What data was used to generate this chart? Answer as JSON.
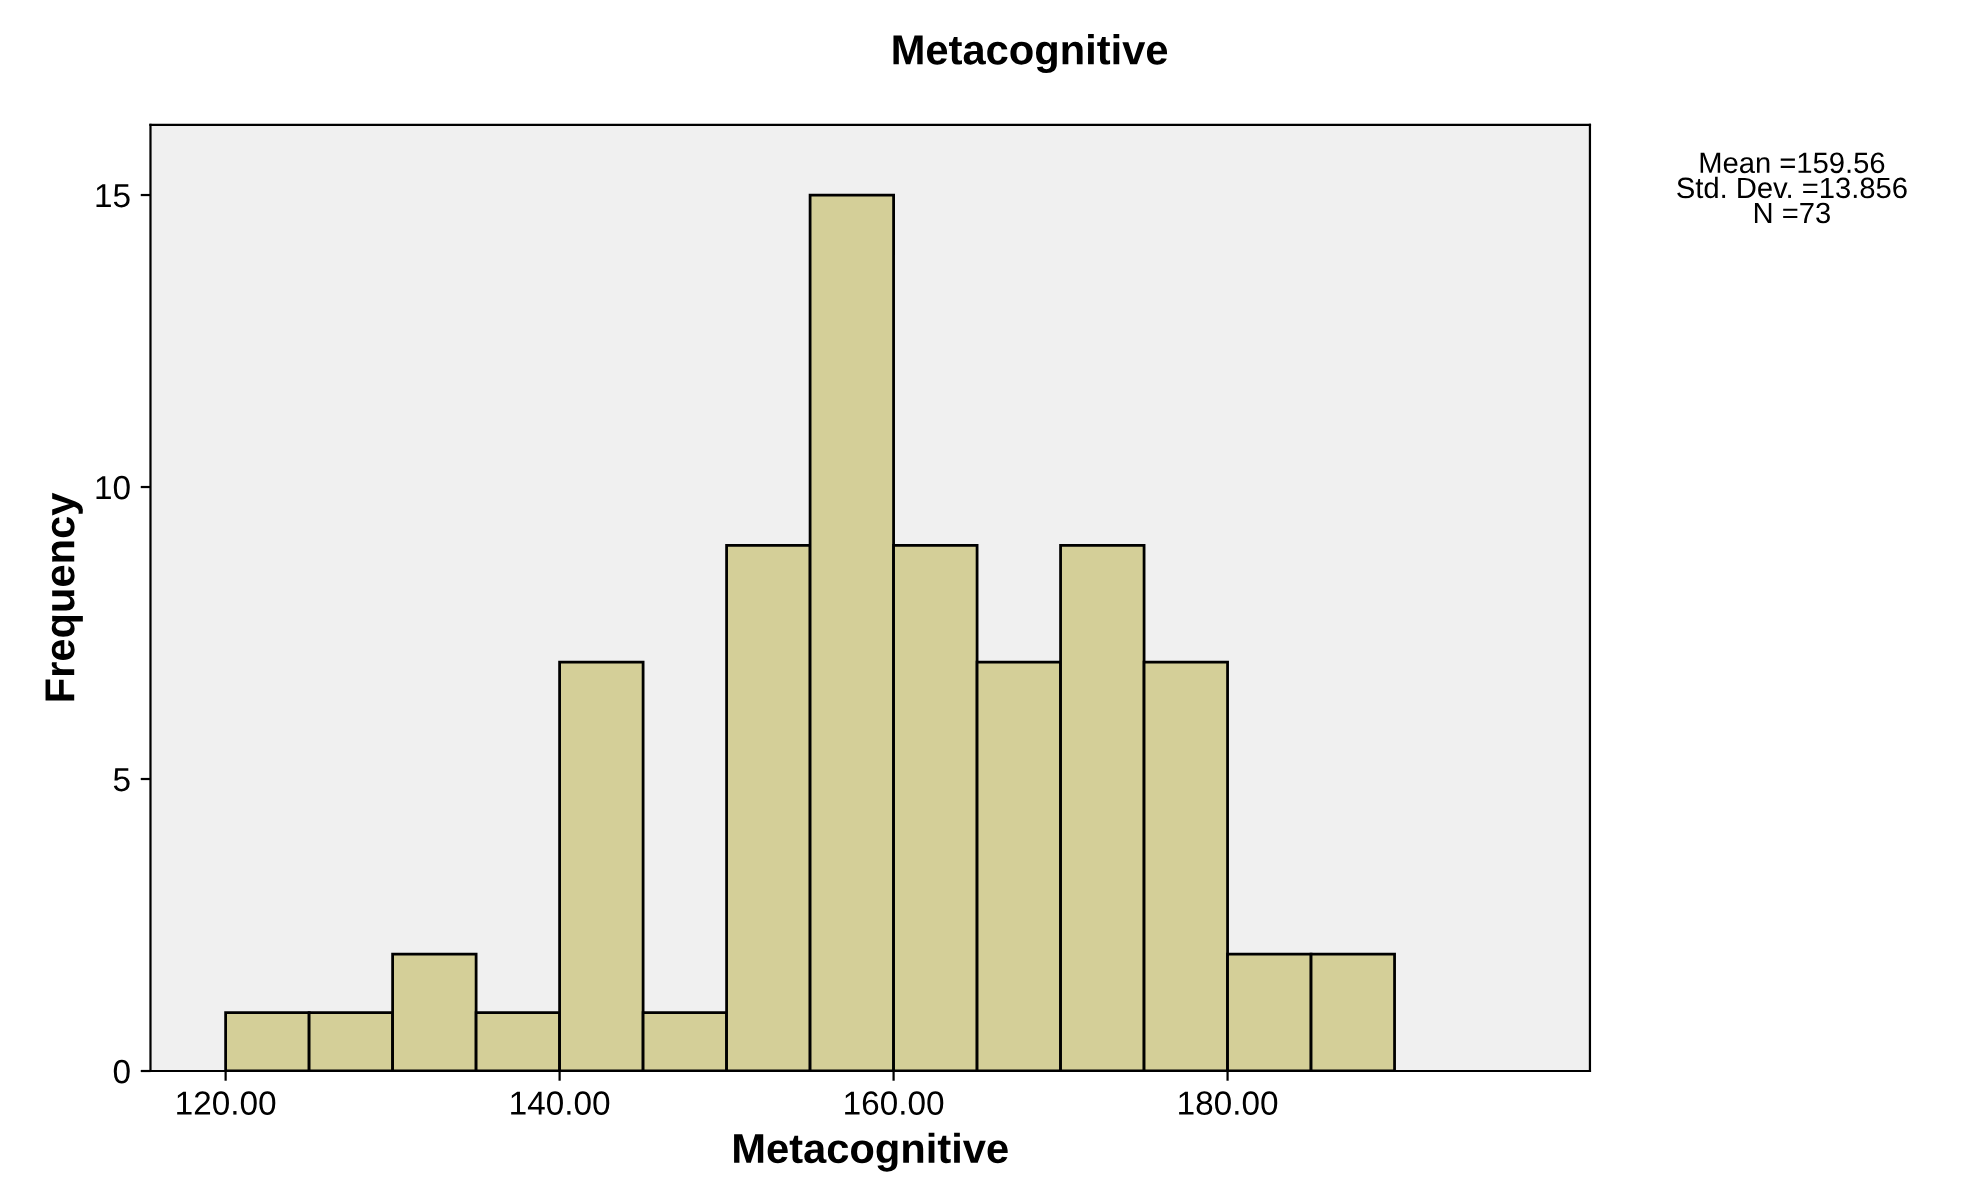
{
  "chart_data": {
    "type": "histogram",
    "title": "Metacognitive",
    "xlabel": "Metacognitive",
    "ylabel": "Frequency",
    "bins": [
      120,
      125,
      130,
      135,
      140,
      145,
      150,
      155,
      160,
      165,
      170,
      175,
      180,
      185,
      190
    ],
    "values": [
      1,
      1,
      2,
      1,
      7,
      1,
      9,
      15,
      9,
      7,
      9,
      7,
      2,
      2
    ],
    "color": "#d4cf98",
    "xlim": [
      115.5,
      201.7
    ],
    "ylim": [
      0,
      16.2
    ],
    "xticks": [
      {
        "value": 120,
        "label": "120.00"
      },
      {
        "value": 140,
        "label": "140.00"
      },
      {
        "value": 160,
        "label": "160.00"
      },
      {
        "value": 180,
        "label": "180.00"
      }
    ],
    "yticks": [
      0,
      5,
      10,
      15
    ],
    "grid": false,
    "legend": false,
    "annotations": [
      "Mean =159.56\nStd. Dev. =13.856\nN =73"
    ]
  }
}
